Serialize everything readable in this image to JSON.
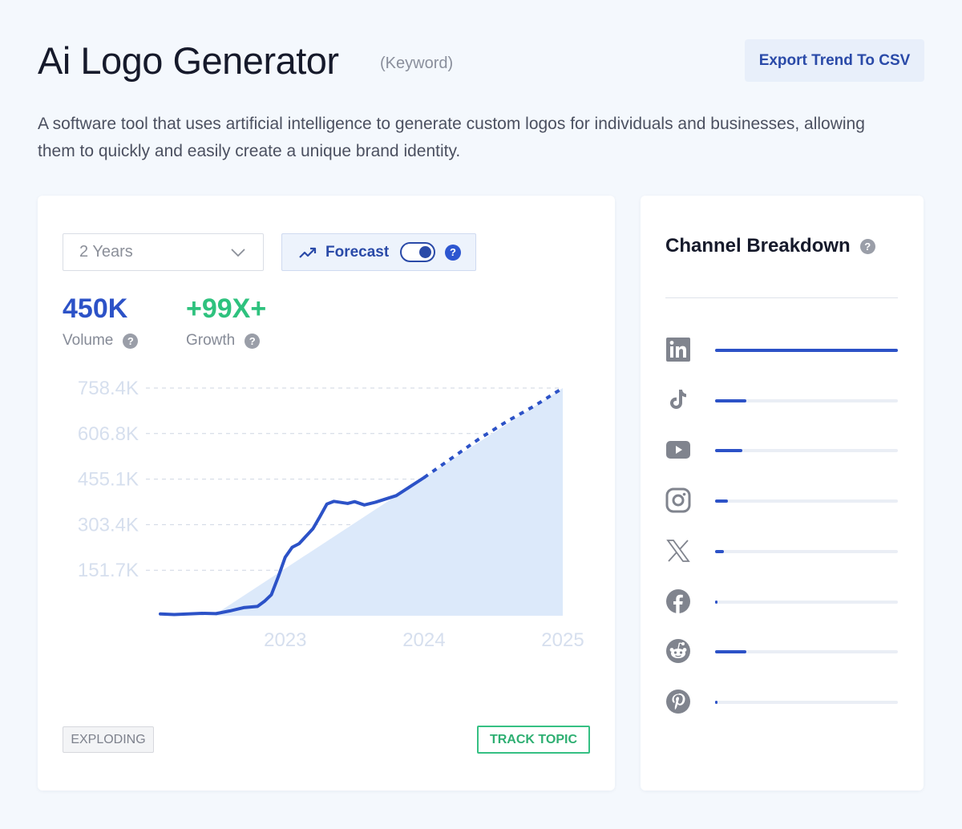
{
  "header": {
    "title": "Ai Logo Generator",
    "type_label": "(Keyword)",
    "export_label": "Export Trend To CSV",
    "description": "A software tool that uses artificial intelligence to generate custom logos for individuals and businesses, allowing them to quickly and easily create a unique brand identity."
  },
  "controls": {
    "range_value": "2 Years",
    "forecast_label": "Forecast",
    "forecast_enabled": true
  },
  "metrics": {
    "volume_value": "450K",
    "volume_label": "Volume",
    "growth_value": "+99X+",
    "growth_label": "Growth"
  },
  "chart_data": {
    "type": "line",
    "y_ticks": [
      "758.4K",
      "606.8K",
      "455.1K",
      "303.4K",
      "151.7K"
    ],
    "y_tick_values": [
      758400,
      606800,
      455100,
      303400,
      151700
    ],
    "x_ticks": [
      "2023",
      "2024",
      "2025"
    ],
    "x_tick_values": [
      2023.0,
      2024.0,
      2025.0
    ],
    "xlim": [
      2022.1,
      2025.0
    ],
    "ylim": [
      0,
      758400
    ],
    "grid": true,
    "actual": [
      [
        2022.1,
        6000
      ],
      [
        2022.2,
        4000
      ],
      [
        2022.3,
        6000
      ],
      [
        2022.4,
        8000
      ],
      [
        2022.5,
        7000
      ],
      [
        2022.6,
        16000
      ],
      [
        2022.7,
        27000
      ],
      [
        2022.8,
        31000
      ],
      [
        2022.85,
        48000
      ],
      [
        2022.9,
        70000
      ],
      [
        2022.95,
        130000
      ],
      [
        2023.0,
        195000
      ],
      [
        2023.05,
        228000
      ],
      [
        2023.1,
        240000
      ],
      [
        2023.2,
        290000
      ],
      [
        2023.25,
        330000
      ],
      [
        2023.3,
        372000
      ],
      [
        2023.35,
        381000
      ],
      [
        2023.45,
        374000
      ],
      [
        2023.5,
        380000
      ],
      [
        2023.57,
        369000
      ],
      [
        2023.65,
        378000
      ],
      [
        2023.8,
        400000
      ],
      [
        2023.9,
        430000
      ],
      [
        2024.0,
        460000
      ]
    ],
    "forecast": [
      [
        2024.0,
        460000
      ],
      [
        2024.2,
        525000
      ],
      [
        2024.4,
        590000
      ],
      [
        2024.6,
        648000
      ],
      [
        2024.8,
        700000
      ],
      [
        2025.0,
        758400
      ]
    ],
    "trend_area": [
      [
        2022.5,
        6000
      ],
      [
        2024.0,
        460000
      ],
      [
        2025.0,
        758400
      ]
    ],
    "colors": {
      "line": "#2c52c7",
      "area": "#dce9fa",
      "grid": "#cfd6e2",
      "tick": "#d6dfee"
    }
  },
  "footer": {
    "status_tag": "EXPLODING",
    "track_label": "TRACK TOPIC"
  },
  "channels": {
    "title": "Channel Breakdown",
    "items": [
      {
        "name": "linkedin",
        "icon": "linkedin-icon",
        "share": 1.0
      },
      {
        "name": "tiktok",
        "icon": "tiktok-icon",
        "share": 0.17
      },
      {
        "name": "youtube",
        "icon": "youtube-icon",
        "share": 0.15
      },
      {
        "name": "instagram",
        "icon": "instagram-icon",
        "share": 0.07
      },
      {
        "name": "x",
        "icon": "x-icon",
        "share": 0.05
      },
      {
        "name": "facebook",
        "icon": "facebook-icon",
        "share": 0.01
      },
      {
        "name": "reddit",
        "icon": "reddit-icon",
        "share": 0.17
      },
      {
        "name": "pinterest",
        "icon": "pinterest-icon",
        "share": 0.01
      }
    ]
  }
}
